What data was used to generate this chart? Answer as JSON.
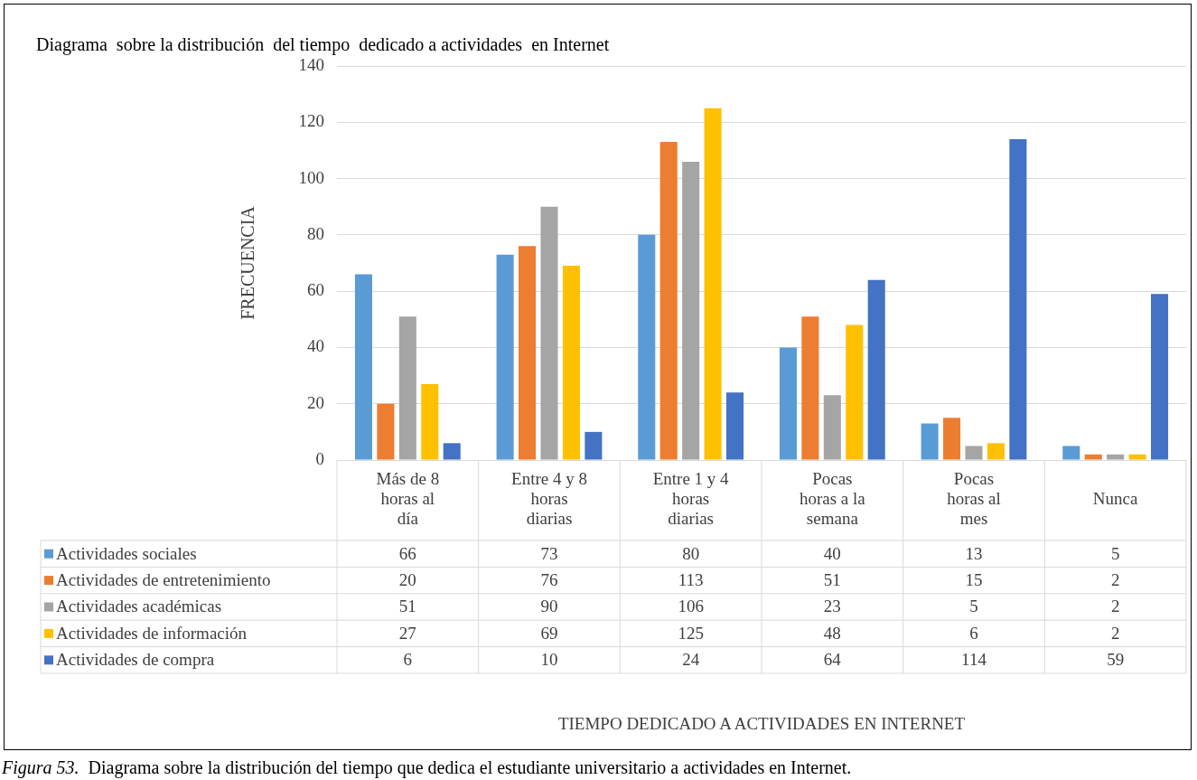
{
  "chart_data": {
    "type": "bar",
    "title": "Diagrama  sobre la distribución  del tiempo  dedicado a actividades  en Internet",
    "ylabel": "FRECUENCIA",
    "categories": [
      "Más de 8 horas al día",
      "Entre 4 y 8 horas diarias",
      "Entre 1 y 4 horas diarias",
      "Pocas horas a la semana",
      "Pocas horas al mes",
      "Nunca"
    ],
    "series": [
      {
        "name": "Actividades sociales",
        "color": "#5b9bd5",
        "values": [
          66,
          73,
          80,
          40,
          13,
          5
        ]
      },
      {
        "name": "Actividades de entretenimiento",
        "color": "#ed7d31",
        "values": [
          20,
          76,
          113,
          51,
          15,
          2
        ]
      },
      {
        "name": "Actividades académicas",
        "color": "#a5a5a5",
        "values": [
          51,
          90,
          106,
          23,
          5,
          2
        ]
      },
      {
        "name": "Actividades de información",
        "color": "#ffc000",
        "values": [
          27,
          69,
          125,
          48,
          6,
          2
        ]
      },
      {
        "name": "Actividades de compra",
        "color": "#4472c4",
        "values": [
          6,
          10,
          24,
          64,
          114,
          59
        ]
      }
    ],
    "ylim": [
      0,
      140
    ],
    "yticks": [
      0,
      20,
      40,
      60,
      80,
      100,
      120,
      140
    ],
    "grid": "y",
    "legend": "bottom",
    "data_labels": true,
    "annotations": [
      "TIEMPO DEDICADO A ACTIVIDADES EN INTERNET",
      "Figura 53.  Diagrama sobre la distribución del tiempo que dedica el estudiante universitario a actividades en Internet."
    ]
  }
}
